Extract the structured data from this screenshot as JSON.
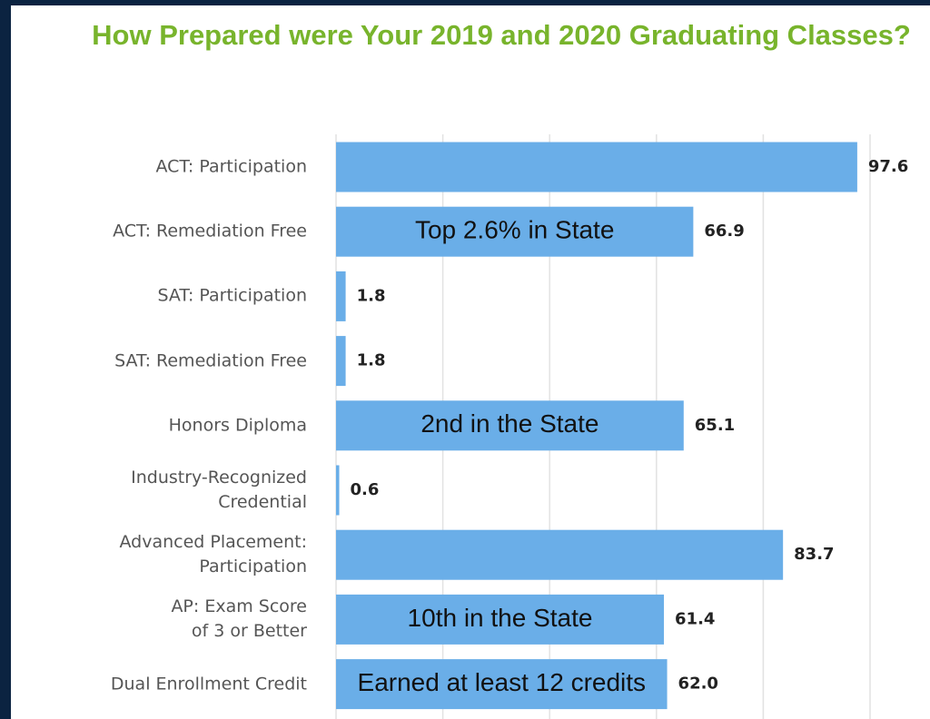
{
  "chart_data": {
    "type": "bar",
    "orientation": "horizontal",
    "title": "How Prepared were Your 2019 and 2020 Graduating Classes?",
    "categories": [
      "ACT: Participation",
      "ACT: Remediation Free",
      "SAT: Participation",
      "SAT: Remediation Free",
      "Honors Diploma",
      "Industry-Recognized Credential",
      "Advanced Placement: Participation",
      "AP: Exam Score of 3 or Better",
      "Dual Enrollment Credit"
    ],
    "values": [
      97.6,
      66.9,
      1.8,
      1.8,
      65.1,
      0.6,
      83.7,
      61.4,
      62.0
    ],
    "value_labels": [
      "97.6",
      "66.9",
      "1.8",
      "1.8",
      "65.1",
      "0.6",
      "83.7",
      "61.4",
      "62.0"
    ],
    "color": "#6aaee8",
    "xlim": [
      0,
      100
    ],
    "xticks": [
      0,
      20,
      40,
      60,
      80,
      100
    ],
    "grid": true,
    "annotations": [
      {
        "text": "Top 2.6% in State",
        "category": "ACT: Remediation Free"
      },
      {
        "text": "2nd in the State",
        "category": "Honors Diploma"
      },
      {
        "text": "10th in the State",
        "category": "AP: Exam Score of 3 or Better"
      },
      {
        "text": "Earned at least 12 credits",
        "category": "Dual Enrollment Credit"
      }
    ]
  }
}
